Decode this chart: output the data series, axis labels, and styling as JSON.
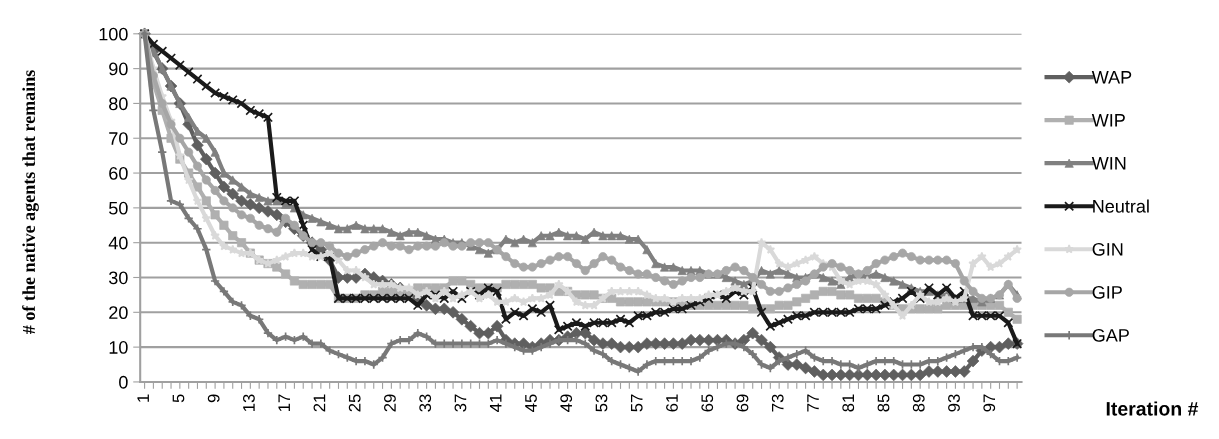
{
  "chart_data": {
    "type": "line",
    "ylabel": "# of the native agents that remains",
    "xlabel": "Iteration #",
    "categories": [
      "1",
      null,
      null,
      null,
      "5",
      null,
      null,
      null,
      "9",
      null,
      null,
      null,
      "13",
      null,
      null,
      null,
      "17",
      null,
      null,
      null,
      "21",
      null,
      null,
      null,
      "25",
      null,
      null,
      null,
      "29",
      null,
      null,
      null,
      "33",
      null,
      null,
      null,
      "37",
      null,
      null,
      null,
      "41",
      null,
      null,
      null,
      "45",
      null,
      null,
      null,
      "49",
      null,
      null,
      null,
      "53",
      null,
      null,
      null,
      "57",
      null,
      null,
      null,
      "61",
      null,
      null,
      null,
      "65",
      null,
      null,
      null,
      "69",
      null,
      null,
      null,
      "73",
      null,
      null,
      null,
      "77",
      null,
      null,
      null,
      "81",
      null,
      null,
      null,
      "85",
      null,
      null,
      null,
      "89",
      null,
      null,
      null,
      "93",
      null,
      null,
      null,
      "97",
      null,
      null,
      null
    ],
    "ylim": [
      0,
      100
    ],
    "yticks": [
      0,
      10,
      20,
      30,
      40,
      50,
      60,
      70,
      80,
      90,
      100
    ],
    "grid": "y",
    "legend": "right",
    "line_style": "solid",
    "series": [
      {
        "name": "WAP",
        "color": "#5f5f5f",
        "marker": "diamond",
        "values": [
          100,
          95,
          90,
          85,
          80,
          74,
          68,
          64,
          60,
          56,
          54,
          52,
          51,
          50,
          49,
          48,
          46,
          44,
          42,
          40,
          38,
          35,
          30,
          30,
          30,
          31,
          30,
          29,
          28,
          27,
          26,
          24,
          22,
          21,
          21,
          20,
          18,
          16,
          14,
          14,
          16,
          12,
          11,
          11,
          10,
          11,
          12,
          12,
          13,
          14,
          14,
          12,
          11,
          11,
          10,
          10,
          10,
          11,
          11,
          11,
          11,
          11,
          12,
          12,
          12,
          12,
          12,
          11,
          12,
          14,
          12,
          10,
          7,
          5,
          5,
          4,
          3,
          2,
          2,
          2,
          2,
          2,
          2,
          2,
          2,
          2,
          2,
          2,
          2,
          3,
          3,
          3,
          3,
          3,
          6,
          9,
          10,
          10,
          11,
          11
        ]
      },
      {
        "name": "WIP",
        "color": "#b0b0b0",
        "marker": "square",
        "values": [
          100,
          86,
          78,
          70,
          64,
          60,
          56,
          52,
          48,
          45,
          42,
          40,
          37,
          35,
          34,
          33,
          31,
          29,
          28,
          28,
          28,
          28,
          24,
          24,
          24,
          25,
          25,
          26,
          26,
          26,
          26,
          27,
          27,
          27,
          27,
          29,
          29,
          28,
          27,
          27,
          27,
          28,
          28,
          28,
          28,
          27,
          27,
          26,
          26,
          25,
          25,
          25,
          24,
          24,
          23,
          23,
          23,
          23,
          23,
          23,
          23,
          22,
          22,
          22,
          22,
          22,
          22,
          22,
          22,
          21,
          21,
          21,
          22,
          22,
          23,
          24,
          25,
          26,
          26,
          25,
          25,
          24,
          24,
          24,
          23,
          22,
          21,
          21,
          21,
          21,
          21,
          22,
          22,
          22,
          22,
          22,
          22,
          22,
          20,
          18
        ]
      },
      {
        "name": "WIN",
        "color": "#808080",
        "marker": "triangle",
        "values": [
          100,
          95,
          90,
          85,
          80,
          76,
          72,
          70,
          66,
          60,
          58,
          56,
          54,
          53,
          52,
          52,
          51,
          50,
          48,
          47,
          46,
          45,
          44,
          44,
          45,
          44,
          44,
          44,
          43,
          42,
          43,
          43,
          42,
          41,
          41,
          40,
          40,
          39,
          38,
          37,
          38,
          41,
          40,
          41,
          40,
          42,
          42,
          43,
          42,
          42,
          41,
          43,
          42,
          42,
          42,
          41,
          41,
          38,
          34,
          33,
          33,
          32,
          32,
          32,
          31,
          31,
          30,
          29,
          28,
          29,
          32,
          31,
          32,
          31,
          30,
          30,
          31,
          30,
          29,
          28,
          30,
          31,
          30,
          31,
          30,
          29,
          28,
          27,
          26,
          26,
          25,
          25,
          24,
          24,
          24,
          23,
          24,
          25,
          28,
          25
        ]
      },
      {
        "name": "Neutral",
        "color": "#1a1a1a",
        "marker": "cross",
        "values": [
          100,
          97,
          95,
          93,
          91,
          89,
          87,
          85,
          83,
          82,
          81,
          80,
          78,
          77,
          76,
          53,
          52,
          52,
          45,
          38,
          36,
          36,
          24,
          24,
          24,
          24,
          24,
          24,
          24,
          24,
          24,
          22,
          25,
          25,
          24,
          26,
          24,
          26,
          25,
          27,
          26,
          18,
          20,
          19,
          21,
          20,
          22,
          15,
          16,
          17,
          16,
          17,
          17,
          17,
          18,
          17,
          19,
          19,
          20,
          20,
          21,
          21,
          22,
          23,
          24,
          25,
          24,
          26,
          25,
          27,
          20,
          16,
          17,
          18,
          19,
          19,
          20,
          20,
          20,
          20,
          20,
          21,
          21,
          21,
          22,
          23,
          24,
          26,
          24,
          27,
          25,
          27,
          24,
          26,
          19,
          19,
          19,
          19,
          17,
          11
        ]
      },
      {
        "name": "GIN",
        "color": "#d9d9d9",
        "marker": "star",
        "values": [
          100,
          90,
          82,
          75,
          65,
          58,
          52,
          47,
          42,
          39,
          38,
          37,
          37,
          35,
          34,
          35,
          36,
          37,
          37,
          36,
          36,
          37,
          35,
          32,
          32,
          30,
          28,
          28,
          28,
          27,
          27,
          25,
          26,
          24,
          26,
          24,
          25,
          26,
          24,
          25,
          23,
          23,
          24,
          23,
          24,
          24,
          25,
          28,
          26,
          23,
          22,
          22,
          24,
          26,
          26,
          26,
          26,
          25,
          24,
          24,
          23,
          24,
          24,
          24,
          25,
          25,
          26,
          27,
          26,
          26,
          40,
          38,
          34,
          33,
          34,
          35,
          36,
          34,
          33,
          29,
          28,
          29,
          29,
          28,
          25,
          22,
          19,
          22,
          25,
          23,
          23,
          24,
          23,
          24,
          34,
          36,
          33,
          34,
          36,
          38
        ]
      },
      {
        "name": "GIP",
        "color": "#a6a6a6",
        "marker": "circle",
        "values": [
          100,
          88,
          80,
          74,
          70,
          66,
          62,
          58,
          55,
          52,
          50,
          48,
          47,
          45,
          44,
          43,
          47,
          45,
          42,
          40,
          40,
          39,
          37,
          36,
          37,
          38,
          39,
          40,
          39,
          39,
          38,
          39,
          39,
          39,
          40,
          39,
          39,
          40,
          40,
          40,
          38,
          36,
          34,
          33,
          33,
          34,
          35,
          36,
          36,
          34,
          32,
          34,
          36,
          35,
          33,
          32,
          31,
          31,
          30,
          29,
          28,
          29,
          30,
          30,
          31,
          31,
          32,
          33,
          32,
          30,
          28,
          26,
          26,
          27,
          28,
          29,
          31,
          33,
          34,
          33,
          32,
          31,
          32,
          34,
          35,
          36,
          37,
          36,
          35,
          35,
          35,
          35,
          34,
          29,
          26,
          24,
          24,
          25,
          28,
          24
        ]
      },
      {
        "name": "GAP",
        "color": "#787878",
        "marker": "plus",
        "values": [
          100,
          78,
          66,
          52,
          51,
          47,
          44,
          38,
          29,
          26,
          23,
          22,
          19,
          18,
          14,
          12,
          13,
          12,
          13,
          11,
          11,
          9,
          8,
          7,
          6,
          6,
          5,
          7,
          11,
          12,
          12,
          14,
          13,
          11,
          11,
          11,
          11,
          11,
          11,
          11,
          12,
          11,
          10,
          9,
          9,
          10,
          11,
          12,
          12,
          12,
          11,
          9,
          8,
          6,
          5,
          4,
          3,
          5,
          6,
          6,
          6,
          6,
          6,
          7,
          9,
          10,
          11,
          11,
          10,
          8,
          5,
          4,
          6,
          7,
          8,
          9,
          7,
          6,
          6,
          5,
          5,
          4,
          5,
          6,
          6,
          6,
          5,
          5,
          5,
          6,
          6,
          7,
          8,
          9,
          10,
          10,
          8,
          6,
          6,
          7
        ]
      }
    ]
  }
}
